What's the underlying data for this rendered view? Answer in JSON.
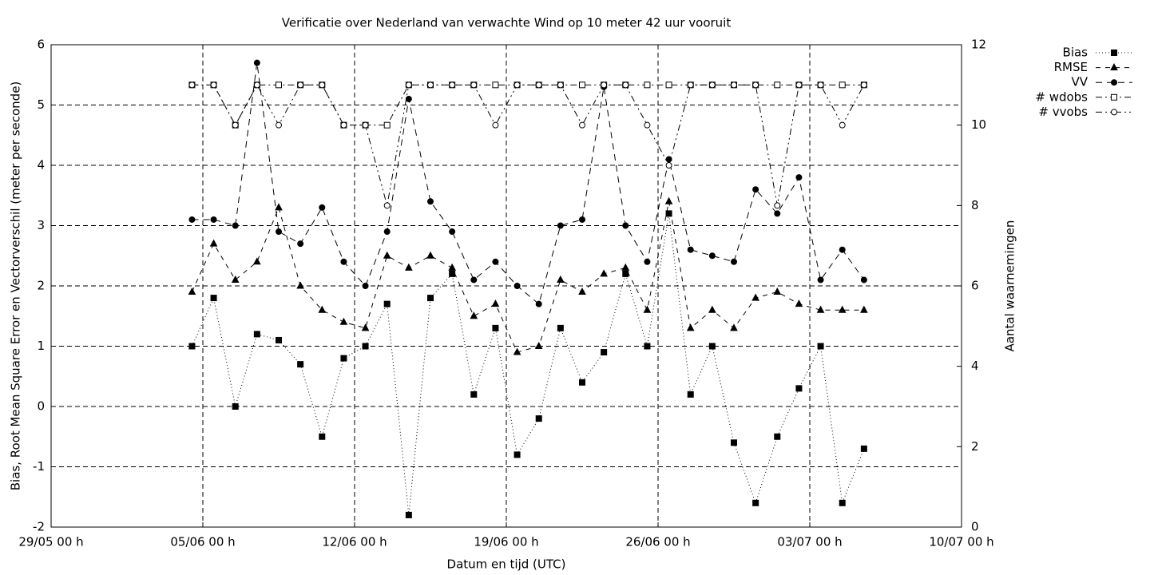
{
  "chart_data": {
    "type": "line",
    "title": "Verificatie over Nederland van verwachte Wind op 10 meter 42 uur vooruit",
    "xlabel": "Datum en tijd (UTC)",
    "ylabel": "Bias, Root Mean Square Error en Vectorverschil (meter per seconde)",
    "y2label": "Aantal waarnemingen",
    "x": [
      "04/06 12 h",
      "05/06 12 h",
      "06/06 12 h",
      "07/06 12 h",
      "08/06 12 h",
      "09/06 12 h",
      "10/06 12 h",
      "11/06 12 h",
      "12/06 12 h",
      "13/06 12 h",
      "14/06 12 h",
      "15/06 12 h",
      "16/06 12 h",
      "17/06 12 h",
      "18/06 12 h",
      "19/06 12 h",
      "20/06 12 h",
      "21/06 12 h",
      "22/06 12 h",
      "23/06 12 h",
      "24/06 12 h",
      "25/06 12 h",
      "26/06 12 h",
      "27/06 12 h",
      "28/06 12 h",
      "29/06 12 h",
      "30/06 12 h",
      "01/07 12 h",
      "02/07 12 h",
      "03/07 12 h",
      "04/07 12 h",
      "05/07 12 h"
    ],
    "xlim": [
      "29/05 00 h",
      "10/07 00 h"
    ],
    "xticks": [
      "29/05 00 h",
      "05/06 00 h",
      "12/06 00 h",
      "19/06 00 h",
      "26/06 00 h",
      "03/07 00 h",
      "10/07 00 h"
    ],
    "ylim": [
      -2,
      6
    ],
    "yticks": [
      -2,
      -1,
      0,
      1,
      2,
      3,
      4,
      5,
      6
    ],
    "y2lim": [
      0,
      12
    ],
    "y2ticks": [
      0,
      2,
      4,
      6,
      8,
      10,
      12
    ],
    "grid": true,
    "legend": "outside-right-top",
    "series": [
      {
        "name": "Bias",
        "color": "#000000",
        "marker": "square-filled",
        "line_style": "dotted",
        "values": [
          1.0,
          1.8,
          0.0,
          1.2,
          1.1,
          0.7,
          -0.5,
          0.8,
          1.0,
          1.7,
          -1.8,
          1.8,
          2.2,
          0.2,
          1.3,
          -0.8,
          -0.2,
          1.3,
          0.4,
          0.9,
          2.2,
          1.0,
          3.2,
          0.2,
          1.0,
          -0.6,
          -1.6,
          -0.5,
          0.3,
          1.0,
          -1.6,
          -0.7
        ]
      },
      {
        "name": "RMSE",
        "color": "#000000",
        "marker": "triangle-filled",
        "line_style": "dashed",
        "values": [
          1.9,
          2.7,
          2.1,
          2.4,
          3.3,
          2.0,
          1.6,
          1.4,
          1.3,
          2.5,
          2.3,
          2.5,
          2.3,
          1.5,
          1.7,
          0.9,
          1.0,
          2.1,
          1.9,
          2.2,
          2.3,
          1.6,
          3.4,
          1.3,
          1.6,
          1.3,
          1.8,
          1.9,
          1.7,
          1.6,
          1.6,
          1.6
        ]
      },
      {
        "name": "VV",
        "color": "#000000",
        "marker": "circle-filled",
        "line_style": "long-dashed",
        "values": [
          3.1,
          3.1,
          3.0,
          5.7,
          2.9,
          2.7,
          3.3,
          2.4,
          2.0,
          2.9,
          5.1,
          3.4,
          2.9,
          2.1,
          2.4,
          2.0,
          1.7,
          3.0,
          3.1,
          5.3,
          3.0,
          2.4,
          4.1,
          2.6,
          2.5,
          2.4,
          3.6,
          3.2,
          3.8,
          2.1,
          2.6,
          2.1
        ]
      },
      {
        "name": "# wdobs",
        "color": "#000000",
        "marker": "square-open",
        "line_style": "dash-dot",
        "axis": "y2",
        "values": [
          11,
          11,
          10,
          11,
          11,
          11,
          11,
          10,
          10,
          10,
          11,
          11,
          11,
          11,
          11,
          11,
          11,
          11,
          11,
          11,
          11,
          11,
          11,
          11,
          11,
          11,
          11,
          11,
          11,
          11,
          11,
          11
        ]
      },
      {
        "name": "# vvobs",
        "color": "#000000",
        "marker": "circle-open",
        "line_style": "dash-dot-dot",
        "axis": "y2",
        "values": [
          11,
          11,
          10,
          11,
          10,
          11,
          11,
          10,
          10,
          8,
          11,
          11,
          11,
          11,
          10,
          11,
          11,
          11,
          10,
          11,
          11,
          10,
          9,
          11,
          11,
          11,
          11,
          8,
          11,
          11,
          10,
          11
        ]
      }
    ]
  }
}
